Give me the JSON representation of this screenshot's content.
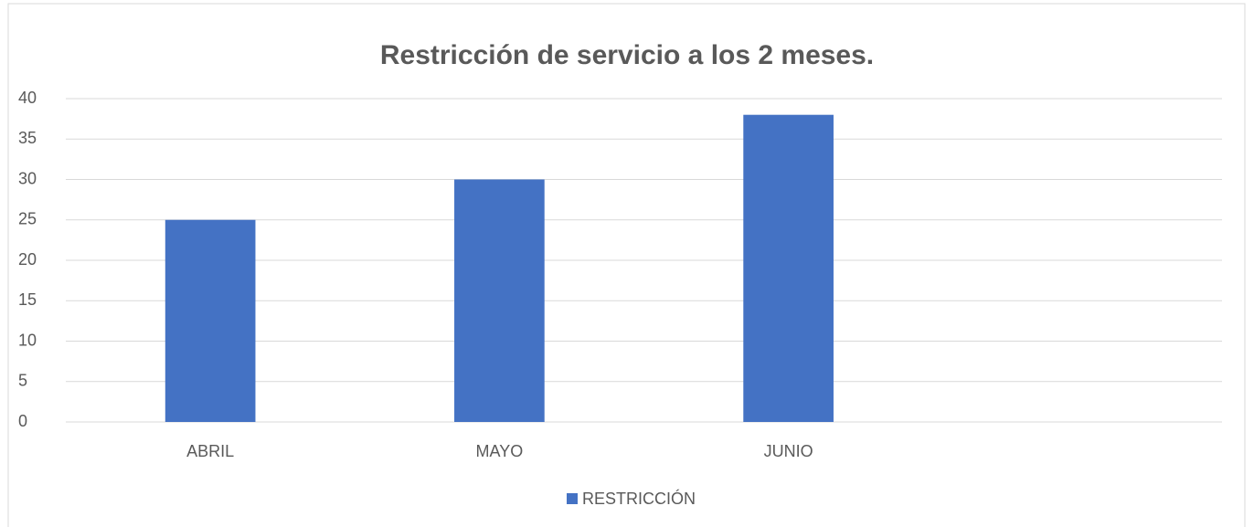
{
  "chart_data": {
    "type": "bar",
    "title": "Restricción de servicio a los 2 meses.",
    "categories": [
      "ABRIL",
      "MAYO",
      "JUNIO",
      null
    ],
    "series": [
      {
        "name": "RESTRICCIÓN",
        "color": "#4472c4",
        "values": [
          25,
          30,
          38,
          null
        ]
      }
    ],
    "ylim": [
      0,
      40
    ],
    "yticks": [
      0,
      5,
      10,
      15,
      20,
      25,
      30,
      35,
      40
    ],
    "grid": true,
    "legend": "bottom"
  }
}
